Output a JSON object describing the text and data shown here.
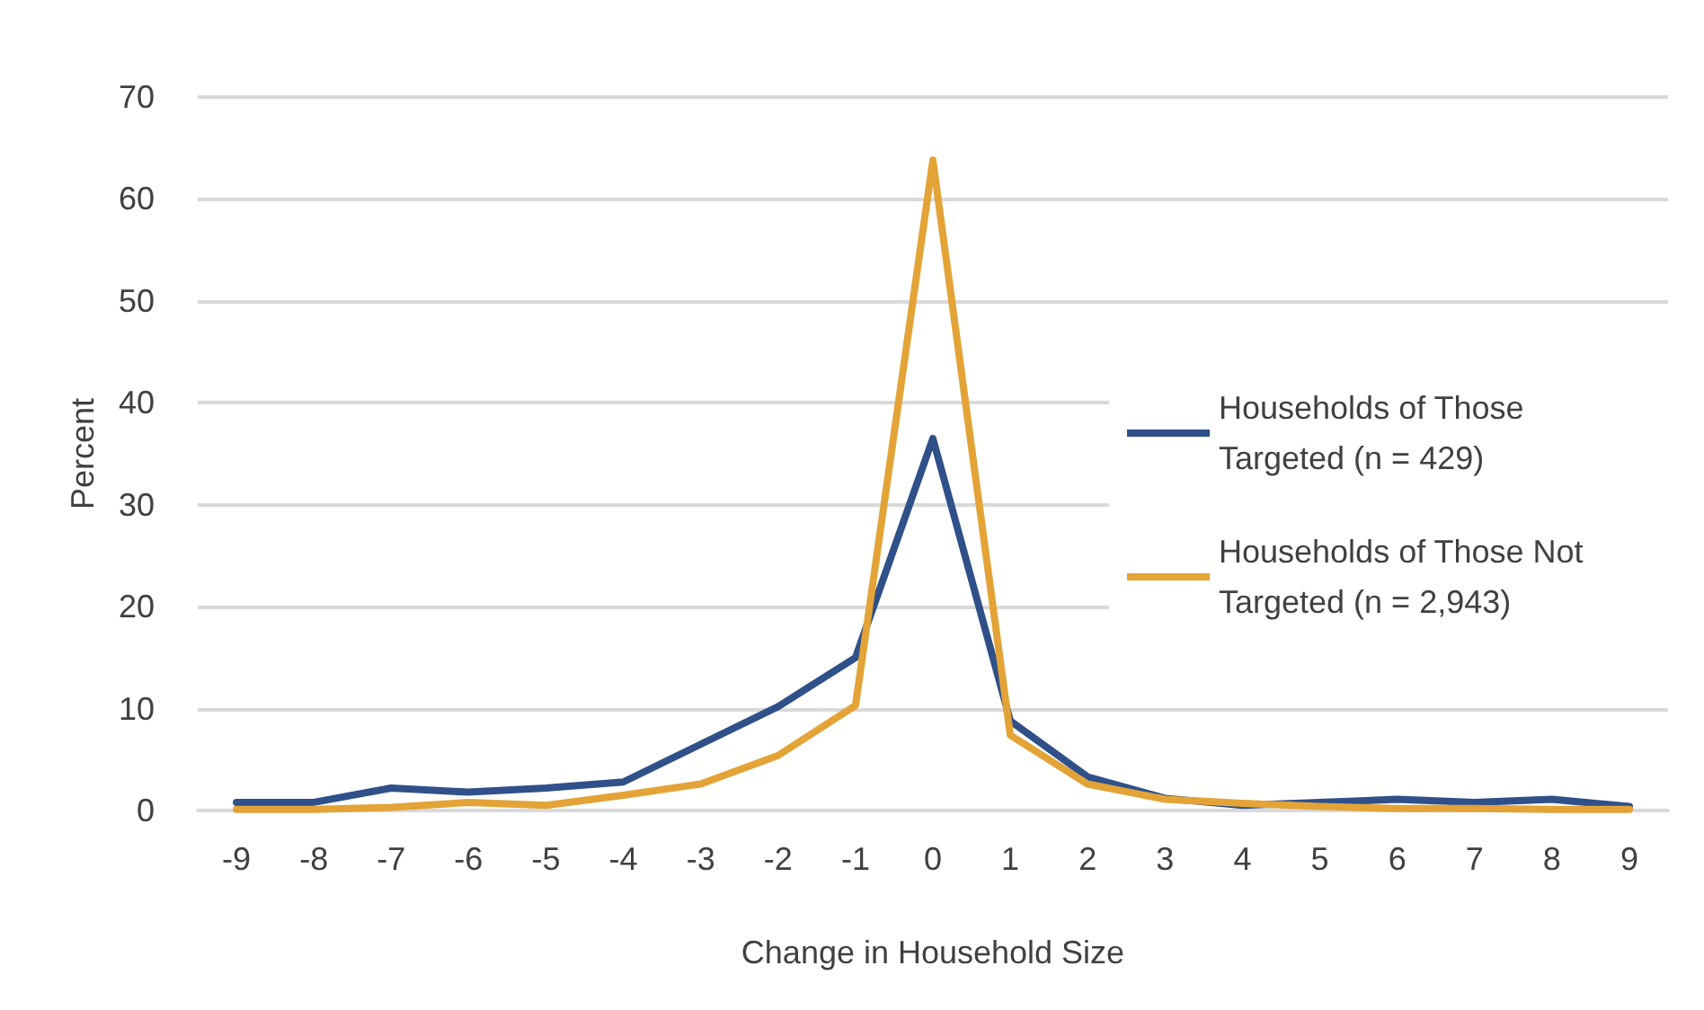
{
  "chart_data": {
    "type": "line",
    "xlabel": "Change in Household Size",
    "ylabel": "Percent",
    "categories": [
      "-9",
      "-8",
      "-7",
      "-6",
      "-5",
      "-4",
      "-3",
      "-2",
      "-1",
      "0",
      "1",
      "2",
      "3",
      "4",
      "5",
      "6",
      "7",
      "8",
      "9"
    ],
    "series": [
      {
        "name": "Households of Those Targeted (n = 429)",
        "color": "#2f5089",
        "values": [
          0.8,
          0.8,
          2.2,
          1.8,
          2.2,
          2.8,
          6.5,
          10.2,
          15,
          36.5,
          8.8,
          3.3,
          1.2,
          0.5,
          0.8,
          1.1,
          0.8,
          1.1,
          0.4
        ]
      },
      {
        "name": "Households of Those Not Targeted (n = 2,943)",
        "color": "#e3a336",
        "values": [
          0.1,
          0.1,
          0.3,
          0.8,
          0.5,
          1.5,
          2.6,
          5.4,
          10.3,
          63.8,
          7.4,
          2.6,
          1.1,
          0.7,
          0.4,
          0.2,
          0.2,
          0.1,
          0.1
        ]
      }
    ],
    "ylim": [
      0,
      70
    ],
    "yticks": [
      0,
      10,
      20,
      30,
      40,
      50,
      60,
      70
    ],
    "grid": "y",
    "legend": "right",
    "marker": "none",
    "line_style": "solid"
  }
}
